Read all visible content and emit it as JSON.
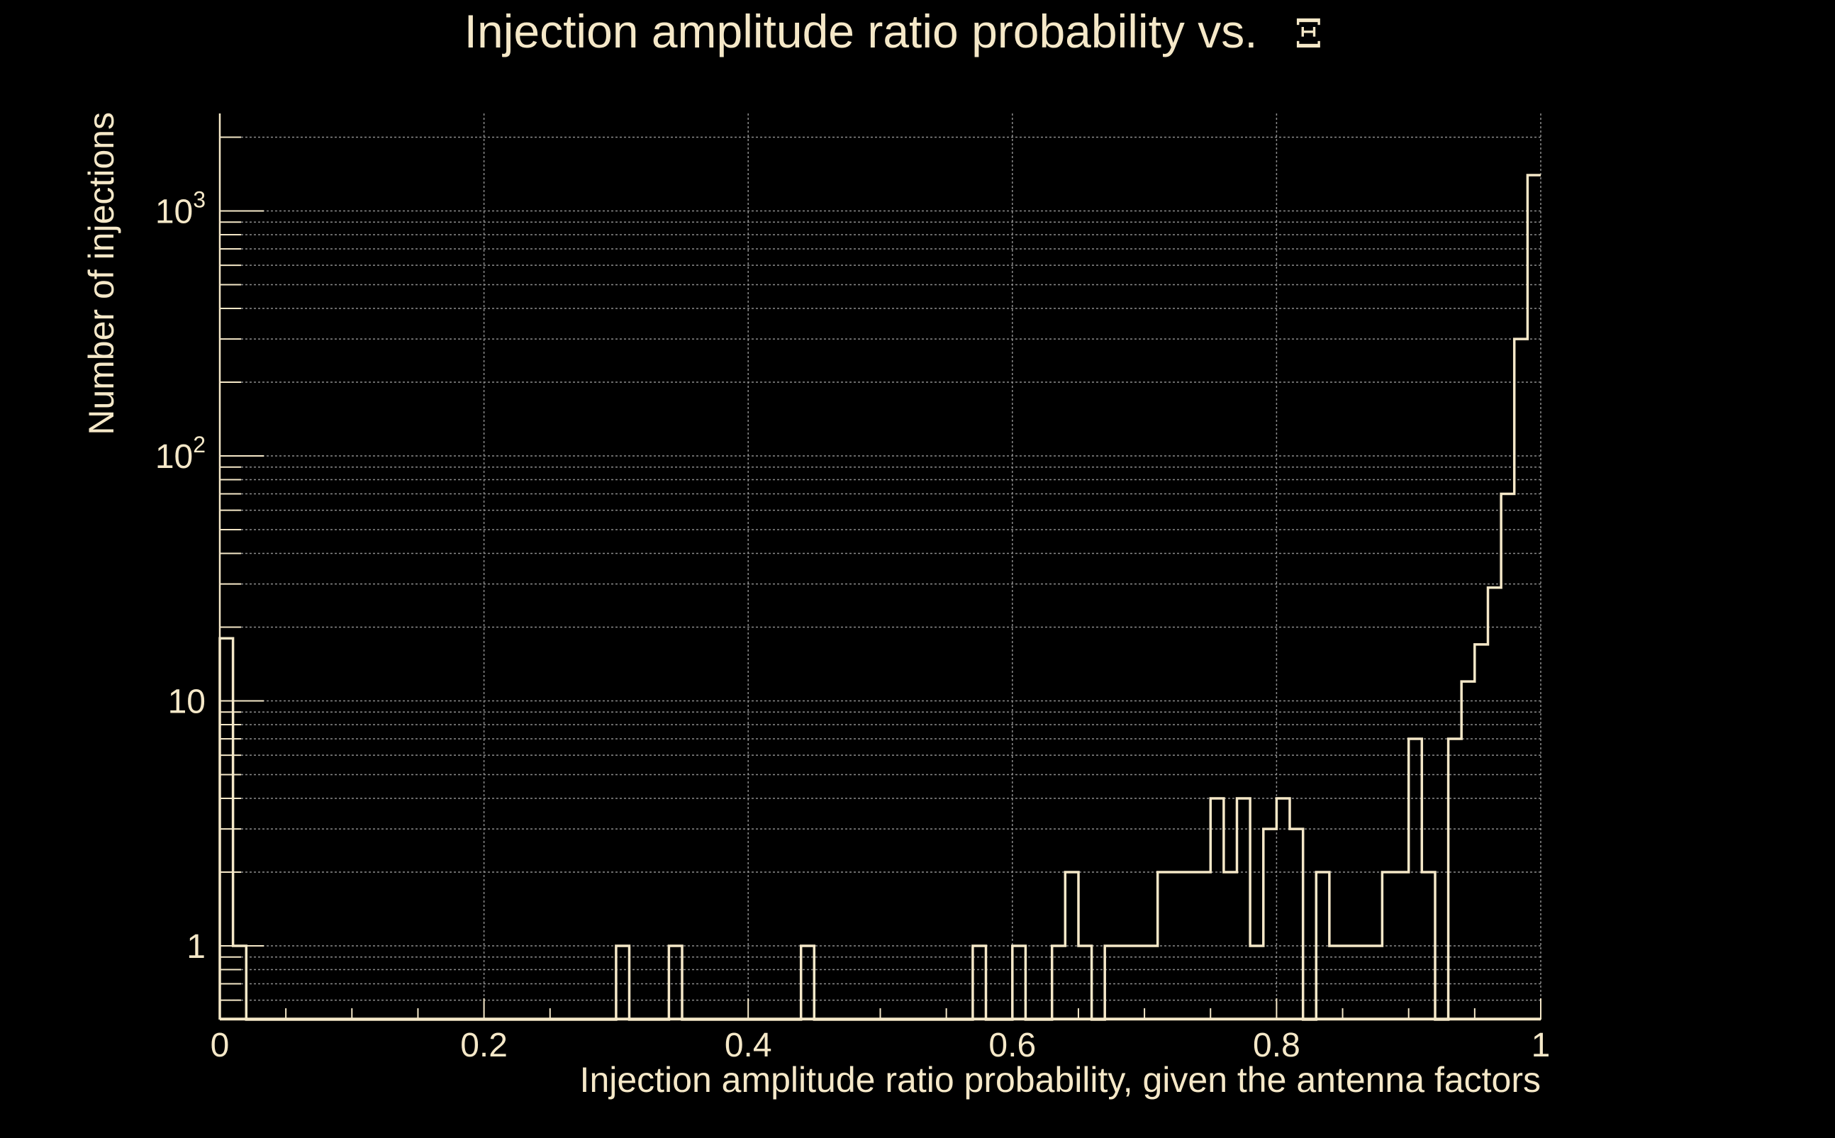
{
  "chart_data": {
    "type": "histogram",
    "title": "Injection amplitude ratio probability vs.",
    "title_symbol": "Ξ",
    "xlabel": "Injection amplitude ratio probability, given the antenna factors",
    "ylabel": "Number of injections",
    "x_scale": "linear",
    "y_scale": "log",
    "xlim": [
      0,
      1
    ],
    "ylim": [
      0.5,
      2500
    ],
    "grid": true,
    "x_ticks": [
      {
        "value": 0,
        "label": "0"
      },
      {
        "value": 0.2,
        "label": "0.2"
      },
      {
        "value": 0.4,
        "label": "0.4"
      },
      {
        "value": 0.6,
        "label": "0.6"
      },
      {
        "value": 0.8,
        "label": "0.8"
      },
      {
        "value": 1,
        "label": "1"
      }
    ],
    "y_ticks": [
      {
        "value": 1,
        "base": "1",
        "exp": ""
      },
      {
        "value": 10,
        "base": "10",
        "exp": ""
      },
      {
        "value": 100,
        "base": "10",
        "exp": "2"
      },
      {
        "value": 1000,
        "base": "10",
        "exp": "3"
      }
    ],
    "bin_width": 0.01,
    "bin_left_edges": [
      0.0,
      0.01,
      0.3,
      0.34,
      0.44,
      0.57,
      0.6,
      0.63,
      0.64,
      0.65,
      0.67,
      0.68,
      0.69,
      0.7,
      0.71,
      0.72,
      0.73,
      0.74,
      0.75,
      0.76,
      0.77,
      0.78,
      0.79,
      0.8,
      0.81,
      0.83,
      0.84,
      0.85,
      0.86,
      0.87,
      0.88,
      0.89,
      0.9,
      0.91,
      0.93,
      0.94,
      0.95,
      0.96,
      0.97,
      0.98,
      0.99
    ],
    "bin_counts": [
      18,
      1,
      1,
      1,
      1,
      1,
      1,
      1,
      2,
      1,
      1,
      1,
      1,
      1,
      2,
      2,
      2,
      2,
      4,
      2,
      4,
      1,
      3,
      4,
      3,
      2,
      1,
      1,
      1,
      1,
      2,
      2,
      7,
      2,
      7,
      12,
      17,
      29,
      70,
      300,
      1400
    ],
    "colors": {
      "background": "#000000",
      "foreground": "#F5E8C8",
      "grid": "#8C8C8C"
    }
  }
}
